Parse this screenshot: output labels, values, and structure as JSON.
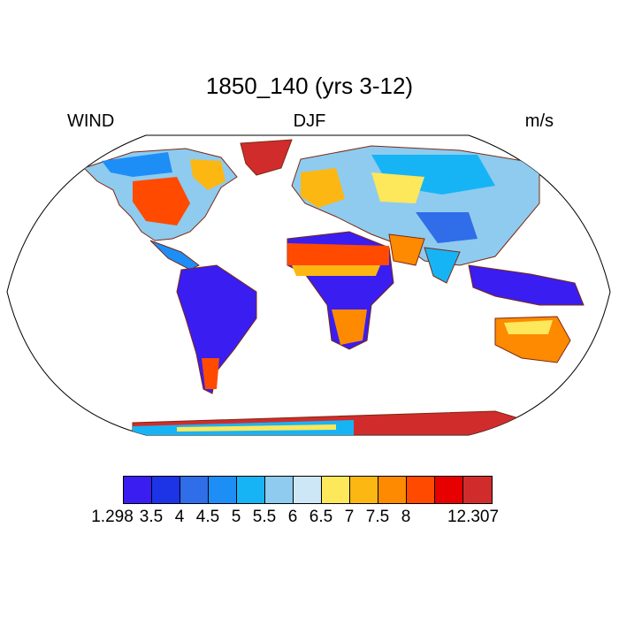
{
  "figure": {
    "title": "1850_140 (yrs 3-12)",
    "left_label": "WIND",
    "center_label": "DJF",
    "right_label": "m/s"
  },
  "map": {
    "projection": "Robinson",
    "variable": "wind speed",
    "regions": [
      {
        "name": "Greenland",
        "level": 12
      },
      {
        "name": "Antarctica",
        "level": 11
      },
      {
        "name": "Amazon",
        "level": 0
      },
      {
        "name": "Central Africa",
        "level": 0
      },
      {
        "name": "Sahara",
        "level": 10
      },
      {
        "name": "Australia interior",
        "level": 9
      },
      {
        "name": "Indonesia",
        "level": 0
      },
      {
        "name": "North America plains",
        "level": 10
      },
      {
        "name": "Siberia",
        "level": 4
      },
      {
        "name": "Europe",
        "level": 8
      },
      {
        "name": "Arabia",
        "level": 7
      },
      {
        "name": "Tibet",
        "level": 2
      }
    ]
  },
  "colorbar": {
    "colors": [
      "#3a1df0",
      "#1d34e6",
      "#2f6ee8",
      "#1e8ef7",
      "#17b4f5",
      "#8ecbef",
      "#cde7f6",
      "#fde75b",
      "#fdb712",
      "#fd8a00",
      "#ff4a00",
      "#e60000",
      "#d12c2c"
    ],
    "labels": [
      "1.298",
      "3.5",
      "4",
      "4.5",
      "5",
      "5.5",
      "6",
      "6.5",
      "7",
      "7.5",
      "8",
      "12.307"
    ]
  }
}
